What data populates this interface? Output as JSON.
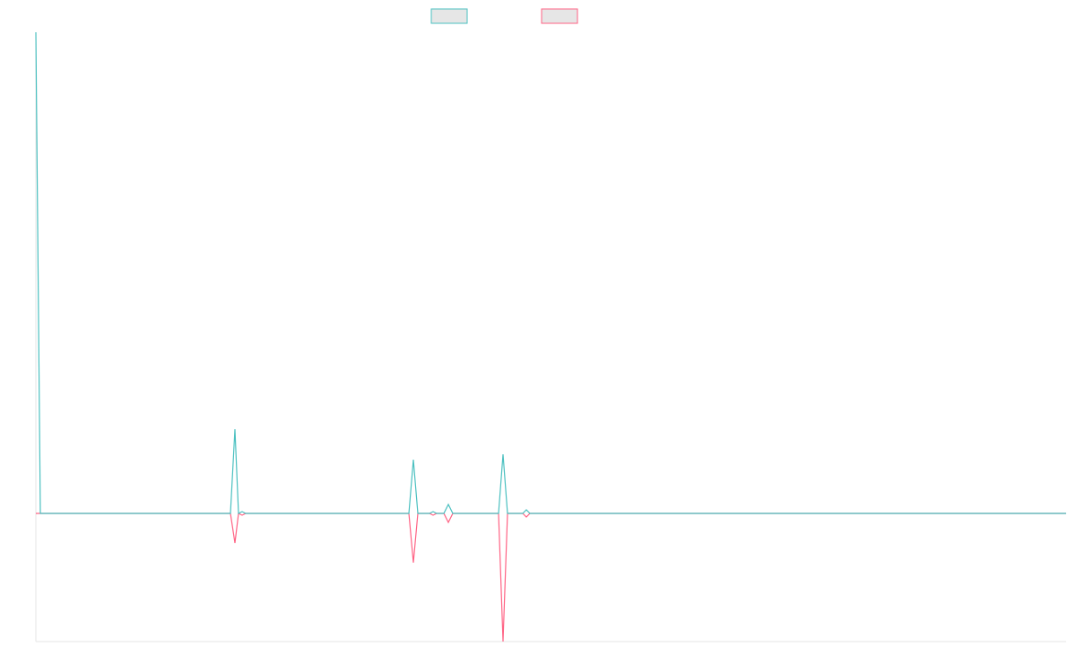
{
  "chart_data": {
    "type": "line",
    "xlim": [
      0,
      1149
    ],
    "ylim": [
      -1.43,
      5.37
    ],
    "x": [
      0,
      5,
      217,
      222,
      226,
      230,
      234,
      416,
      421,
      426,
      439,
      443,
      447,
      455,
      460,
      465,
      516,
      521,
      526,
      543,
      547,
      551,
      1149
    ],
    "series": [
      {
        "color": "#4bc0c0",
        "values": [
          5.37,
          0,
          0,
          0.94,
          0,
          0.02,
          0,
          0,
          0.6,
          0,
          0,
          0.02,
          0,
          0,
          0.1,
          0,
          0,
          0.66,
          0,
          0,
          0.04,
          0,
          0
        ]
      },
      {
        "color": "#ff6384",
        "values": [
          0,
          0,
          0,
          -0.33,
          0,
          -0.02,
          0,
          0,
          -0.55,
          0,
          0,
          -0.02,
          0,
          0,
          -0.1,
          0,
          0,
          -1.43,
          0,
          0,
          -0.04,
          0,
          0
        ]
      }
    ]
  }
}
